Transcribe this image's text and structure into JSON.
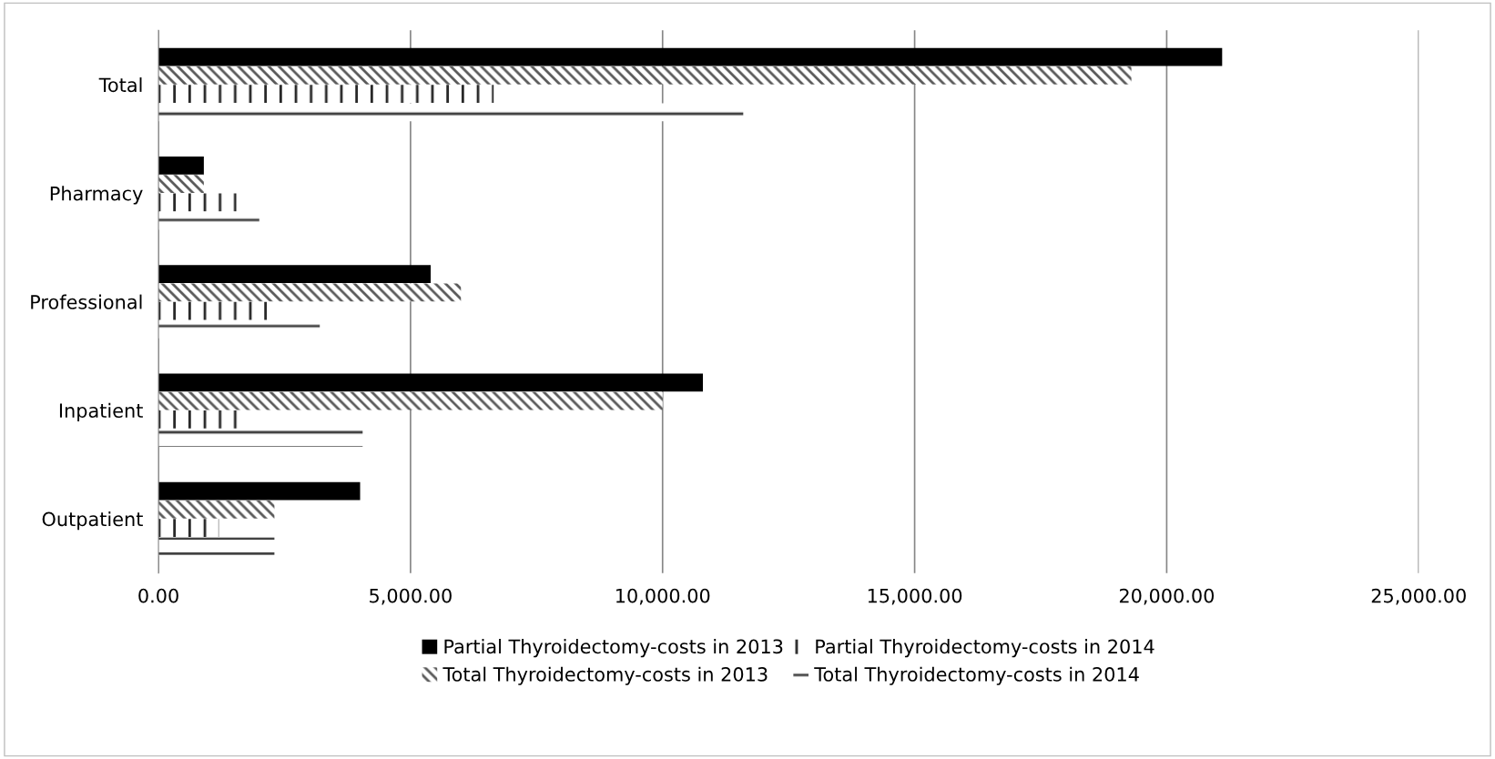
{
  "chart_data": {
    "type": "bar",
    "orientation": "horizontal",
    "categories": [
      "Total",
      "Pharmacy",
      "Professional",
      "Inpatient",
      "Outpatient"
    ],
    "series": [
      {
        "name": "Partial Thyroidectomy-costs in 2013",
        "color": "#000000",
        "values": [
          21100,
          900,
          5400,
          10800,
          4000
        ]
      },
      {
        "name": "Total Thyroidectomy-costs in 2013",
        "color": "#595959",
        "values": [
          19300,
          900,
          6000,
          10000,
          2300
        ]
      },
      {
        "name": "Partial Thyroidectomy-costs in 2014",
        "color": "#262626",
        "values": [
          6650,
          1550,
          2350,
          1600,
          1200
        ]
      },
      {
        "name": "Total Thyroidectomy-costs in 2014",
        "color": "#404040",
        "values": [
          11600,
          2000,
          3200,
          4050,
          2300
        ]
      }
    ],
    "xlim": [
      0,
      25000
    ],
    "xticks": [
      {
        "value": 0,
        "label": "0.00"
      },
      {
        "value": 5000,
        "label": "5,000.00"
      },
      {
        "value": 10000,
        "label": "10,000.00"
      },
      {
        "value": 15000,
        "label": "15,000.00"
      },
      {
        "value": 20000,
        "label": "20,000.00"
      },
      {
        "value": 25000,
        "label": "25,000.00"
      }
    ],
    "grid": "x",
    "legend": "bottom"
  }
}
